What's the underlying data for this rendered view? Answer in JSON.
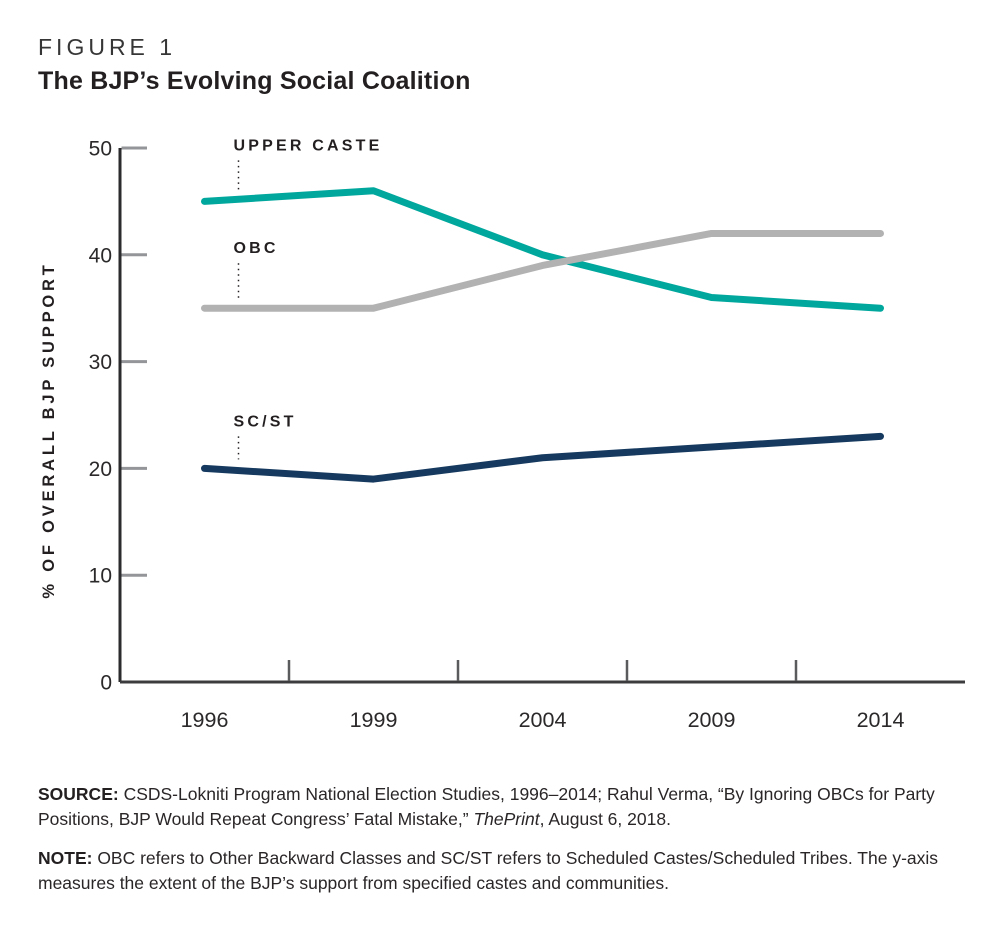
{
  "page": {
    "background": "#ffffff"
  },
  "header": {
    "figure_label": "FIGURE 1",
    "title": "The BJP’s Evolving Social Coalition"
  },
  "chart_data": {
    "type": "line",
    "x_categories": [
      "1996",
      "1999",
      "2004",
      "2009",
      "2014"
    ],
    "series": [
      {
        "name": "UPPER CASTE",
        "color": "#00a79d",
        "values": [
          45,
          46,
          40,
          36,
          35
        ]
      },
      {
        "name": "OBC",
        "color": "#b2b2b2",
        "values": [
          35,
          35,
          39,
          42,
          42
        ]
      },
      {
        "name": "SC/ST",
        "color": "#163a5f",
        "values": [
          20,
          19,
          21,
          22,
          23
        ]
      }
    ],
    "ylabel": "% OF OVERALL BJP SUPPORT",
    "ylim": [
      0,
      50
    ],
    "yticks": [
      0,
      10,
      20,
      30,
      40,
      50
    ],
    "grid": false,
    "legend": "direct-labels-with-dotted-leaders",
    "axis_color": "#3c3c3e",
    "tick_label_color": "#2b292a",
    "label_color": "#231f20"
  },
  "footer": {
    "source_label": "SOURCE:",
    "source_text": " CSDS-Lokniti Program National Election Studies, 1996–2014; Rahul Verma, “By Ignoring OBCs for Party Positions, BJP Would Repeat Congress’ Fatal Mistake,” ",
    "source_italic": "ThePrint",
    "source_suffix": ", August 6, 2018.",
    "note_label": "NOTE:",
    "note_text": " OBC refers to Other Backward Classes and SC/ST refers to Scheduled Castes/Scheduled Tribes. The y-axis measures the extent of the BJP’s support from specified castes and communities."
  }
}
